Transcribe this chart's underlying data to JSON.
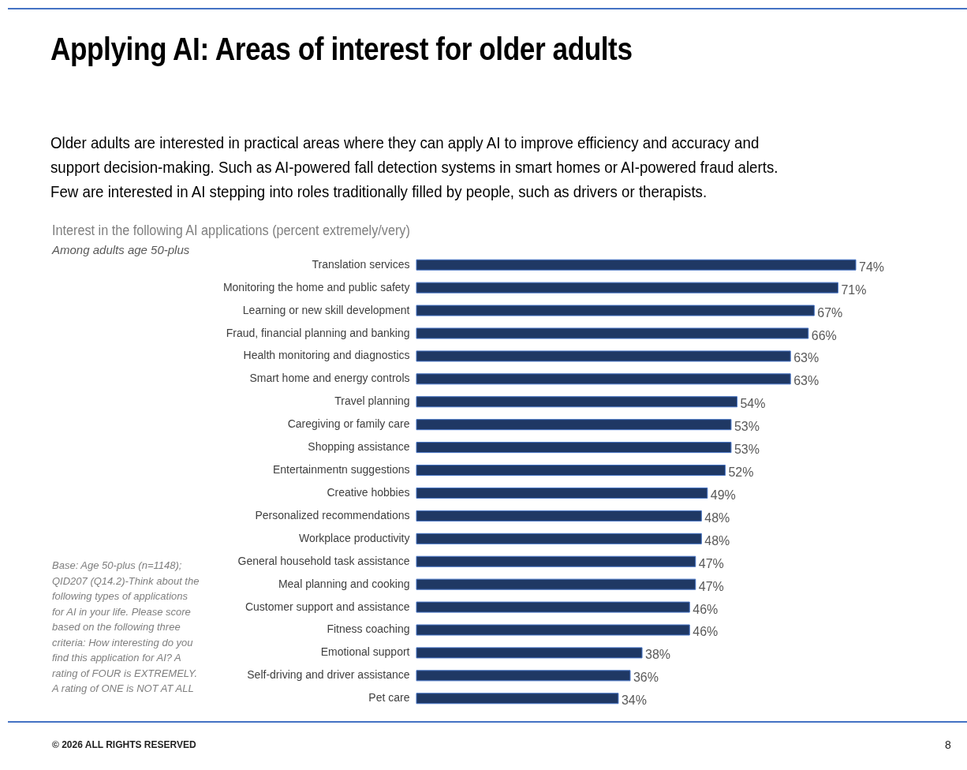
{
  "chart_data": {
    "type": "bar",
    "orientation": "horizontal",
    "title": "Applying AI: Areas of interest for older adults",
    "subtitle": "Older adults are interested in practical areas where they can apply AI to improve efficiency and accuracy and\nsupport decision-making. Such as AI-powered fall detection systems in smart homes or AI-powered fraud alerts.\nFew are interested in AI stepping into roles traditionally filled by people, such as drivers or therapists.",
    "categories": [
      "Translation services",
      "Monitoring the home and public safety",
      "Learning or new skill development",
      "Fraud, financial planning and banking",
      "Health monitoring and diagnostics",
      "Smart home and energy controls",
      "Travel planning",
      "Caregiving or family care",
      "Shopping assistance",
      "Entertainmentn suggestions",
      "Creative hobbies",
      "Personalized recommendations",
      "Workplace productivity",
      "General household task assistance",
      "Meal planning and cooking",
      "Customer support and assistance",
      "Fitness coaching",
      "Emotional support",
      "Self-driving and driver assistance",
      "Pet care"
    ],
    "values": [
      74,
      71,
      67,
      66,
      63,
      63,
      54,
      53,
      53,
      52,
      49,
      48,
      48,
      47,
      47,
      46,
      46,
      38,
      36,
      34
    ],
    "value_labels": [
      "74%",
      "71%",
      "67%",
      "66%",
      "63%",
      "63%",
      "54%",
      "53%",
      "53%",
      "52%",
      "49%",
      "48%",
      "48%",
      "47%",
      "47%",
      "46%",
      "46%",
      "38%",
      "36%",
      "34%"
    ],
    "color": "#1f3864",
    "annotations": [
      "Interest in the following AI applications (percent extremely/very)",
      "Among adults age 50-plus",
      "Base: Age 50-plus (n=1148); QID207 (Q14.2)-Think about the following types of applications for AI in your life. Please score based on the following three criteria: How interesting do you find this application for AI? A rating of FOUR is EXTREMELY. A rating of ONE is NOT AT ALL",
      "© 2026 ALL RIGHTS RESERVED",
      "8"
    ]
  }
}
